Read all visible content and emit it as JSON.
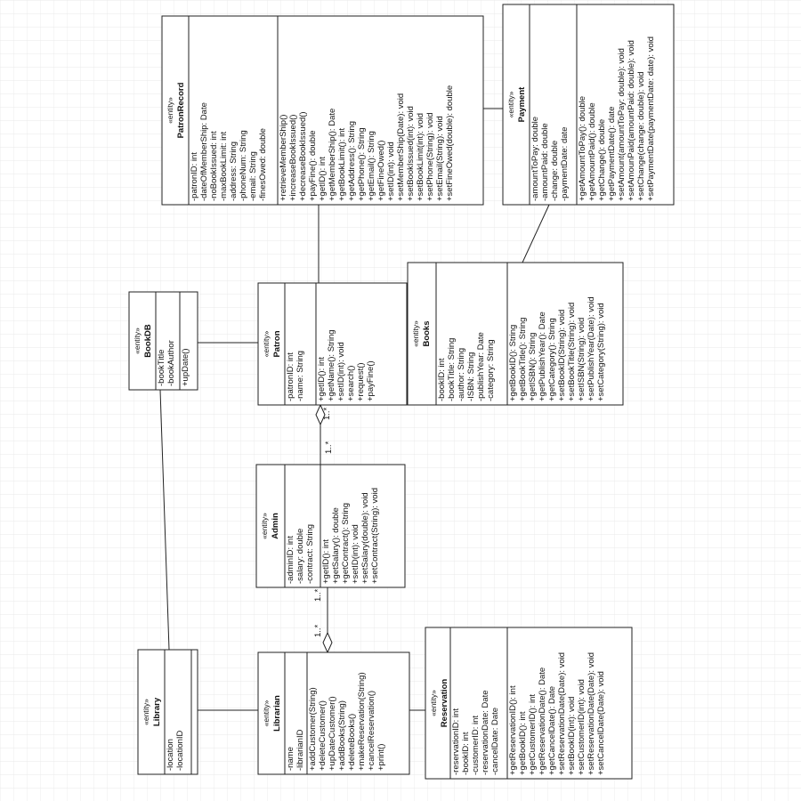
{
  "nodes": [
    {
      "stereotype": "«entity»",
      "name": "PatronRecord",
      "attributes": [
        "-patronID: int",
        "-dateOfMemberShip: Date",
        "-noBookIssued: int",
        "-maxBookLimit: int",
        "-address: String",
        "-phoneNum: String",
        "-email: String",
        "-finesOwed: double"
      ],
      "methods": [
        "+retrieveMemberShip()",
        "+increaseBookIssued()",
        "+decreaseBookIssued()",
        "+payFine(): double",
        "+getID(): int",
        "+getMemberShip(): Date",
        "+getBookLimit(): int",
        "+getAddress(): String",
        "+getPhone(): String",
        "+getEmail(): String",
        "+getFineOwed()",
        "+setID(int): void",
        "+setMemberShip(Date): void",
        "+setBookIssued(int): void",
        "+setBookLimit(int): void",
        "+setPhone(String): void",
        "+setEmail(String): void",
        "+setFineOwed(double): double"
      ]
    },
    {
      "stereotype": "«entity»",
      "name": "Payment",
      "attributes": [
        "-amountToPay: double",
        "-amountPaid: double",
        "-change: double",
        "-paymentDate: date"
      ],
      "methods": [
        "+getAmountToPay(): double",
        "+getAmountPaid(): double",
        "+getChange(): double",
        "+getPaymentDate(): date",
        "+setAmount(amountToPay: double): void",
        "+setAmounPaid(amountPaid: double): void",
        "+setChange(change: double): void",
        "+setPaymentDate(paymentDate: date): void"
      ]
    },
    {
      "stereotype": "«entity»",
      "name": "Books",
      "attributes": [
        "-bookID: int",
        "-bookTitle: String",
        "-author: String",
        "-ISBN: String",
        "-publishYear: Date",
        "-category: String"
      ],
      "methods": [
        "+getBookID(): String",
        "+getBookTitle(): String",
        "+getISBN(): String",
        "+getPublishYear(): Date",
        "+getCategory(): String",
        "+setBookID(String): void",
        "+setBookTitle(String): void",
        "+setISBN(String): void",
        "+setPublishYear(Date): void",
        "+setCategory(String): void"
      ]
    },
    {
      "stereotype": "«entity»",
      "name": "Patron",
      "attributes": [
        "-patronID: int",
        "-name: String"
      ],
      "methods": [
        "+getID(): int",
        "+getName(): String",
        "+setID(int): void",
        "+search()",
        "+request()",
        "+payFine()"
      ]
    },
    {
      "stereotype": "«entity»",
      "name": "BookDB",
      "attributes": [
        "-bookTitle",
        "-bookAuthor"
      ],
      "methods": [
        "+upDate()"
      ]
    },
    {
      "stereotype": "«entity»",
      "name": "Admin",
      "attributes": [
        "-adminID: int",
        "-salary: double",
        "-contract: String"
      ],
      "methods": [
        "+getID(): int",
        "+getSalary(): double",
        "+getContract(): String",
        "+setID(int): void",
        "+setSalary(double): void",
        "+setContract(String): void"
      ]
    },
    {
      "stereotype": "«entity»",
      "name": "Library",
      "attributes": [
        "-location",
        "-locationID"
      ],
      "methods": []
    },
    {
      "stereotype": "«entity»",
      "name": "Librarian",
      "attributes": [
        "-name",
        "-librarianID"
      ],
      "methods": [
        "+addCustomer(String)",
        "+deleteCustomer()",
        "+upDateCustomer()",
        "+addBooks(String)",
        "+deleteBooks()",
        "+makeReservation(String)",
        "+cancelReservation()",
        "+print()"
      ]
    },
    {
      "stereotype": "«entity»",
      "name": "Reservation",
      "attributes": [
        "-reservationID: int",
        "-bookID: int",
        "-customerID: int",
        "-reservationDate: Date",
        "-cancelDate: Date"
      ],
      "methods": [
        "+getReservationID(): int",
        "+getBookID(): int",
        "+getCustomerID(): int",
        "+getReservationDate(): Date",
        "+getCancelDate(): Date",
        "+setReservationDate(Date): void",
        "+setBookID(int): void",
        "+setCustomerID(int): void",
        "+setReservationDate(Date): void",
        "+setCancelDate(Date): void"
      ]
    }
  ],
  "multiplicities": [
    "1..*",
    "1..*",
    "1..*",
    "1..*"
  ]
}
